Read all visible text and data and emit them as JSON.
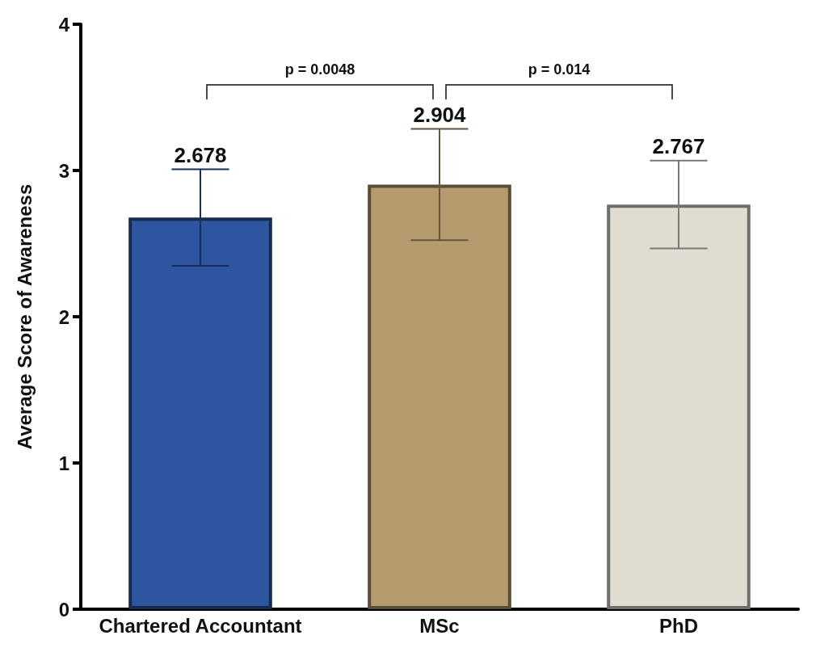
{
  "chart_data": {
    "type": "bar",
    "categories": [
      "Chartered Accountant",
      "MSc",
      "PhD"
    ],
    "values": [
      2.678,
      2.904,
      2.767
    ],
    "errors": [
      0.33,
      0.38,
      0.3
    ],
    "colors": [
      "#2e56a0",
      "#b59b6e",
      "#e0dcd2"
    ],
    "ylabel": "Average Score of Awareness",
    "ylim": [
      0,
      4
    ],
    "yticks": [
      0,
      1,
      2,
      3,
      4
    ],
    "data_labels": true,
    "grid": false,
    "annotations": [
      "p = 0.0048",
      "p = 0.014"
    ]
  }
}
